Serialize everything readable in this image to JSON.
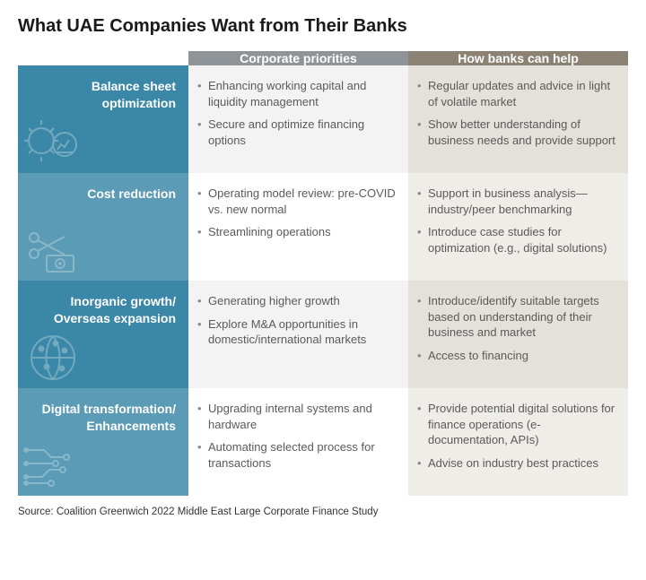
{
  "title": "What UAE Companies Want from Their Banks",
  "colors": {
    "header1_bg": "#8e9498",
    "header2_bg": "#8b8273",
    "row_even_bg": "#3b87a8",
    "row_odd_bg": "#5b9bb6",
    "col1_even_bg": "#f3f3f3",
    "col1_odd_bg": "#ffffff",
    "col2_even_bg": "#e4e1da",
    "col2_odd_bg": "#eeede8",
    "text_body": "#5a5a5a",
    "text_title": "#1a1a1a",
    "icon_stroke": "#ffffff"
  },
  "columns": {
    "col1": "Corporate priorities",
    "col2": "How banks can help"
  },
  "rows": [
    {
      "label": "Balance sheet optimization",
      "icon": "gear-chart",
      "priorities": [
        "Enhancing working capital and liquidity management",
        "Secure and optimize financing options"
      ],
      "help": [
        "Regular updates and advice in light of volatile market",
        "Show better understanding of business needs and provide support"
      ]
    },
    {
      "label": "Cost reduction",
      "icon": "scissors-cash",
      "priorities": [
        "Operating model review: pre-COVID vs. new normal",
        "Streamlining operations"
      ],
      "help": [
        "Support in business analysis—industry/peer benchmarking",
        "Introduce case studies for optimization (e.g., digital solutions)"
      ]
    },
    {
      "label": "Inorganic growth/ Overseas expansion",
      "icon": "globe-network",
      "priorities": [
        "Generating higher growth",
        "Explore M&A opportunities in domestic/international markets"
      ],
      "help": [
        "Introduce/identify suitable targets based on understanding of their business and market",
        "Access to financing"
      ]
    },
    {
      "label": "Digital transformation/ Enhancements",
      "icon": "circuit",
      "priorities": [
        "Upgrading internal systems and hardware",
        "Automating selected process for transactions"
      ],
      "help": [
        "Provide potential digital solutions for finance operations (e-documentation, APIs)",
        "Advise on industry best practices"
      ]
    }
  ],
  "source": "Source: Coalition Greenwich 2022 Middle East Large Corporate Finance Study"
}
